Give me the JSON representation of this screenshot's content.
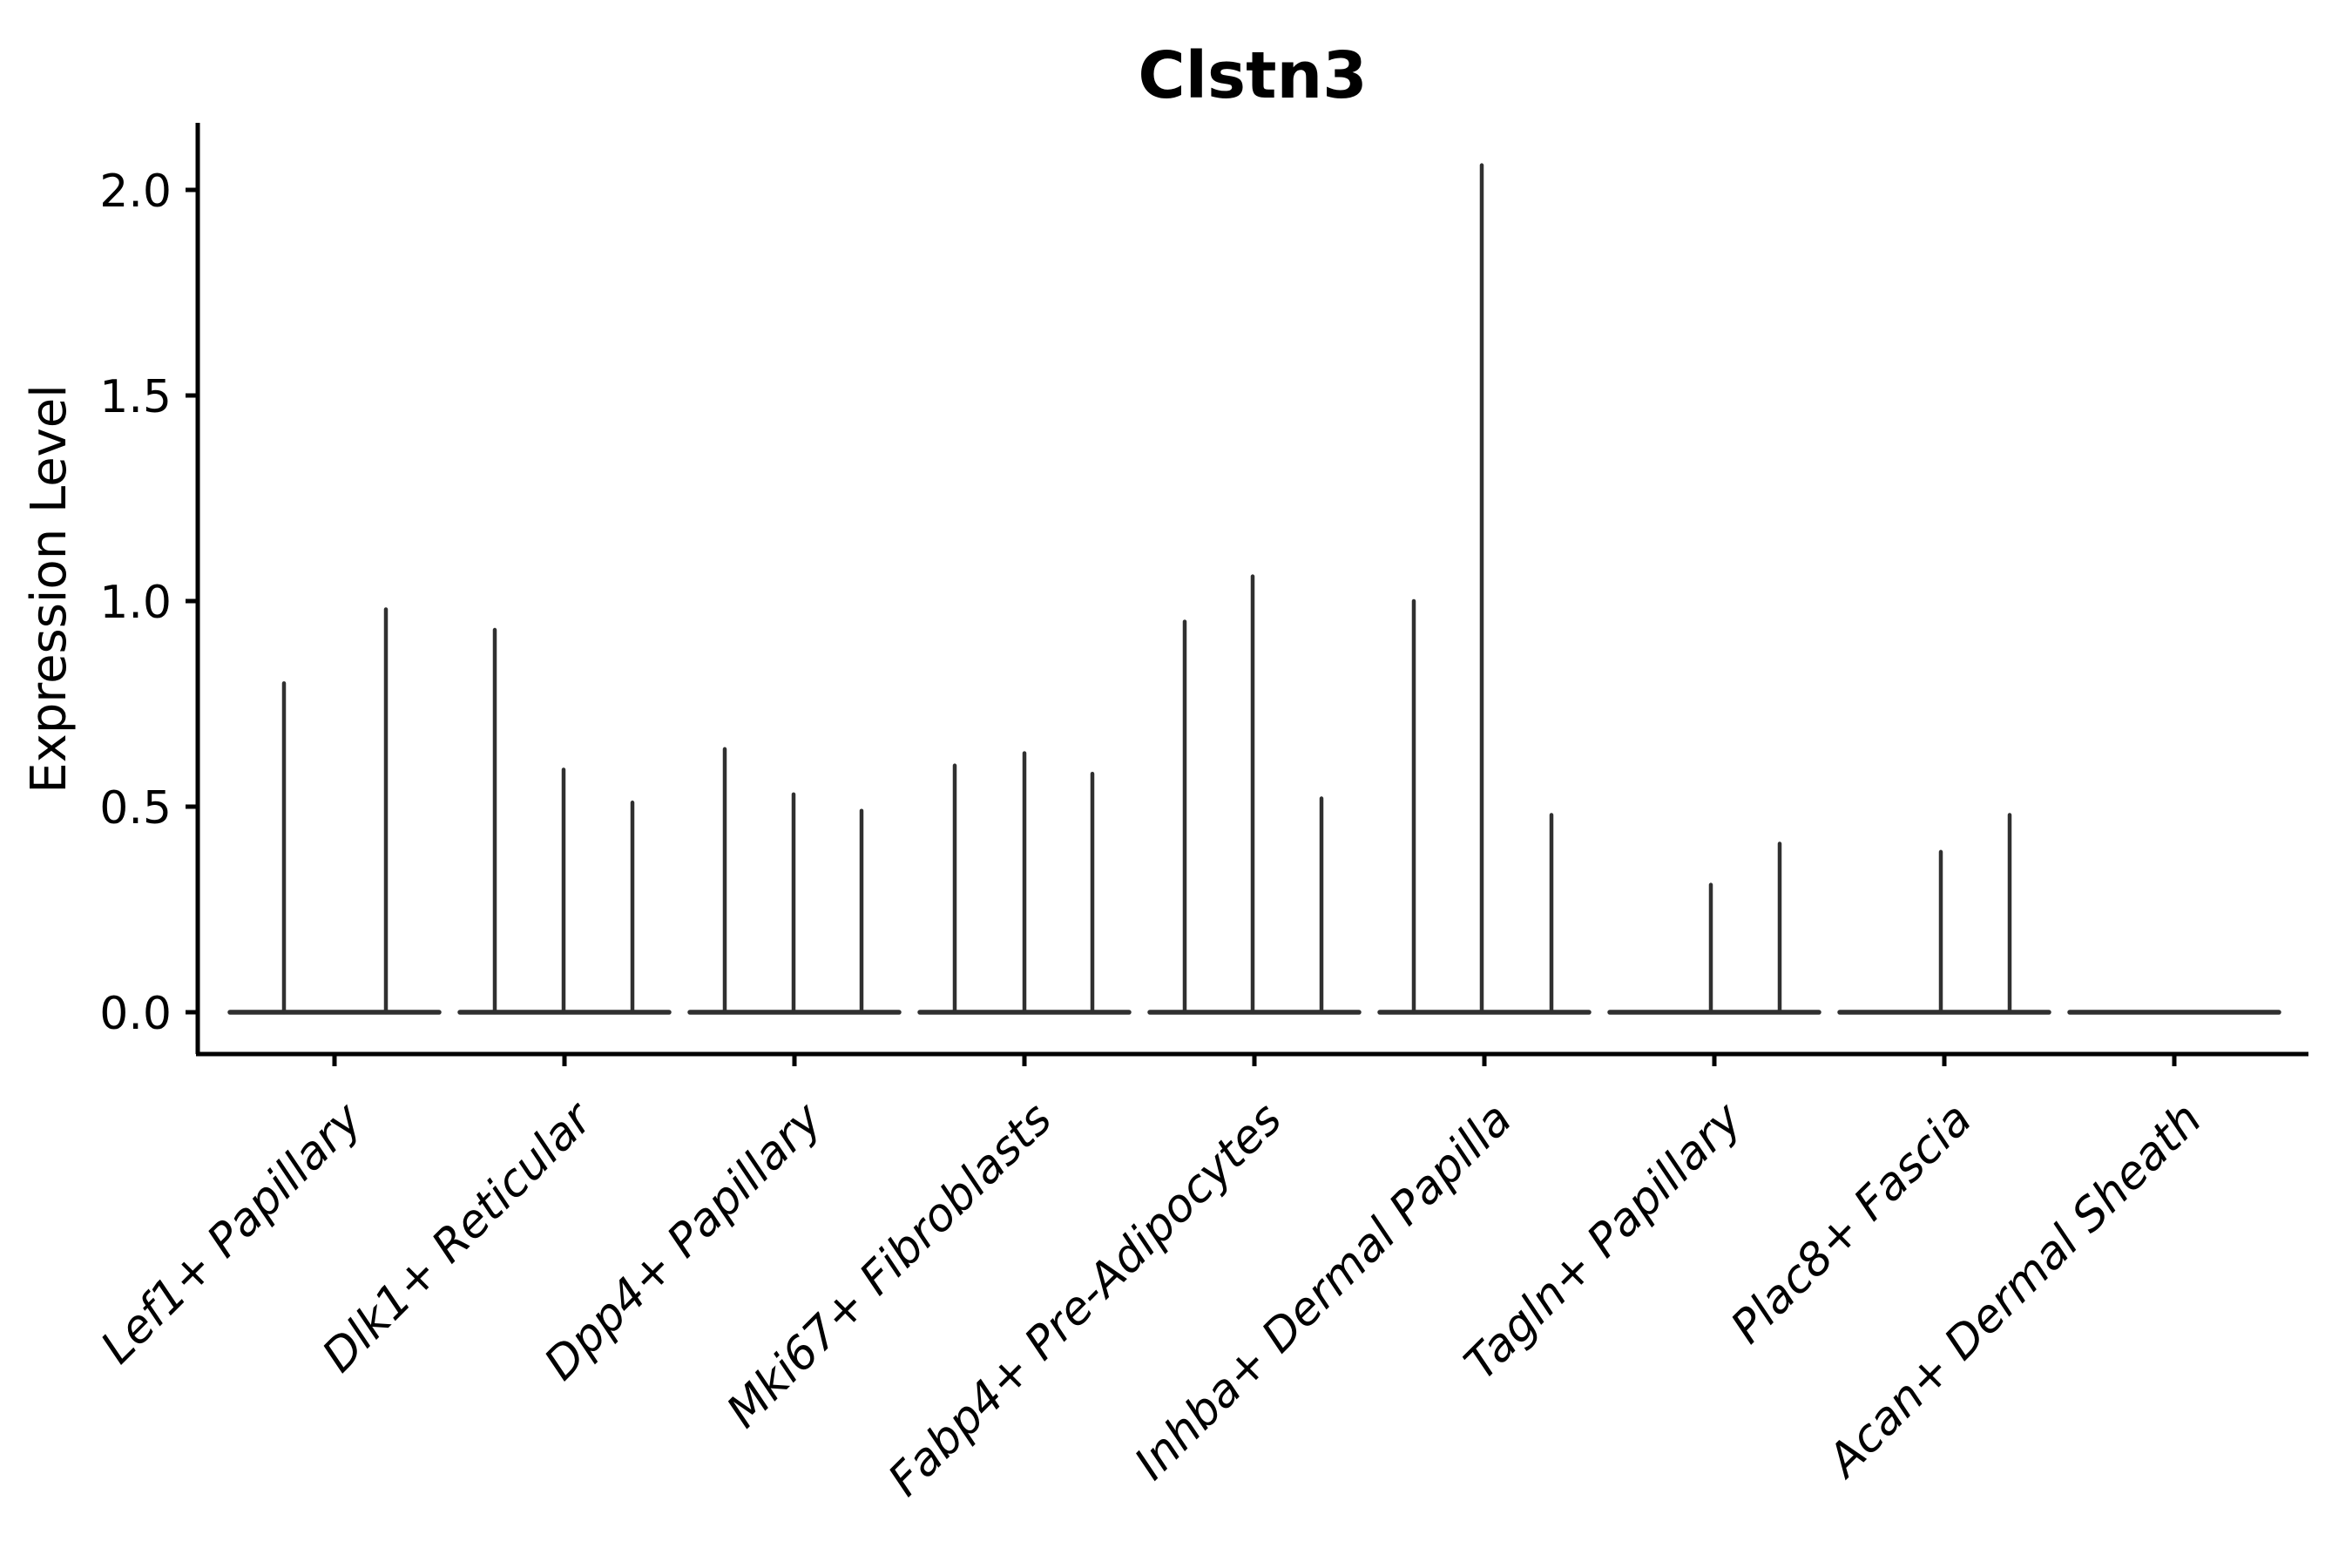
{
  "chart_data": {
    "type": "violin",
    "title": "Clstn3",
    "ylabel": "Expression Level",
    "xlabel": "",
    "grid": false,
    "legend_position": "none",
    "y_ticks": [
      0.0,
      0.5,
      1.0,
      1.5,
      2.0
    ],
    "y_tick_labels": [
      "0.0",
      "0.5",
      "1.0",
      "1.5",
      "2.0"
    ],
    "ylim": [
      -0.1,
      2.16
    ],
    "categories": [
      "Lef1+ Papillary",
      "Dlk1+ Reticular",
      "Dpp4+ Papillary",
      "Mki67+ Fibroblasts",
      "Fabp4+ Pre-Adipocytes",
      "Inhba+ Dermal Papilla",
      "Tagln+ Papillary",
      "Plac8+ Fascia",
      "Acan+ Dermal Sheath"
    ],
    "groups": [
      {
        "category": "Lef1+ Papillary",
        "violins": [
          {
            "offset": -58,
            "max": 0.8
          },
          {
            "offset": 59,
            "max": 0.98
          }
        ]
      },
      {
        "category": "Dlk1+ Reticular",
        "violins": [
          {
            "offset": -80,
            "max": 0.93
          },
          {
            "offset": -1,
            "max": 0.59
          },
          {
            "offset": 78,
            "max": 0.51
          }
        ]
      },
      {
        "category": "Dpp4+ Papillary",
        "violins": [
          {
            "offset": -80,
            "max": 0.64
          },
          {
            "offset": -1,
            "max": 0.53
          },
          {
            "offset": 77,
            "max": 0.49
          }
        ]
      },
      {
        "category": "Mki67+ Fibroblasts",
        "violins": [
          {
            "offset": -80,
            "max": 0.6
          },
          {
            "offset": 0,
            "max": 0.63
          },
          {
            "offset": 78,
            "max": 0.58
          }
        ]
      },
      {
        "category": "Fabp4+ Pre-Adipocytes",
        "violins": [
          {
            "offset": -80,
            "max": 0.95
          },
          {
            "offset": -2,
            "max": 1.06
          },
          {
            "offset": 77,
            "max": 0.52
          }
        ]
      },
      {
        "category": "Inhba+ Dermal Papilla",
        "violins": [
          {
            "offset": -81,
            "max": 1.0
          },
          {
            "offset": -3,
            "max": 2.06
          },
          {
            "offset": 77,
            "max": 0.48
          }
        ]
      },
      {
        "category": "Tagln+ Papillary",
        "violins": [
          {
            "offset": -4,
            "max": 0.31
          },
          {
            "offset": 75,
            "max": 0.41
          }
        ]
      },
      {
        "category": "Plac8+ Fascia",
        "violins": [
          {
            "offset": -4,
            "max": 0.39
          },
          {
            "offset": 75,
            "max": 0.48
          }
        ]
      },
      {
        "category": "Acan+ Dermal Sheath",
        "violins": []
      }
    ],
    "colors": {
      "violin": "#303030",
      "axis": "#000000",
      "text": "#000000",
      "background": "#ffffff"
    }
  }
}
